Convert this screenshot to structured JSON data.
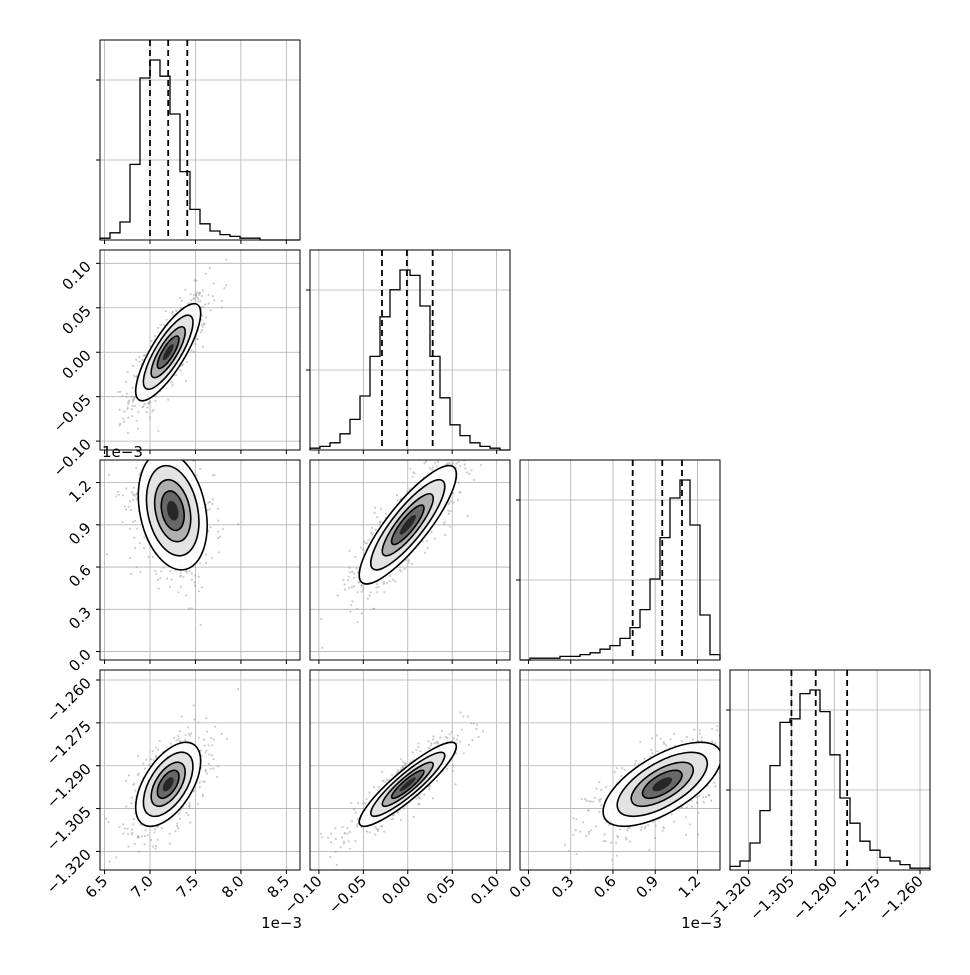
{
  "chart_data": {
    "type": "corner",
    "grid": true,
    "params": [
      {
        "range": [
          6.45,
          8.65
        ],
        "ticks": [
          "6.5",
          "7.0",
          "7.5",
          "8.0",
          "8.5"
        ],
        "tick_values": [
          6.5,
          7.0,
          7.5,
          8.0,
          8.5
        ],
        "offset_label": "1e−3",
        "hist_edges_start": 6.45,
        "hist_bin": 0.11,
        "hist_counts": [
          1,
          4,
          10,
          42,
          90,
          100,
          91,
          70,
          38,
          17,
          9,
          5,
          3,
          2,
          1,
          1,
          0,
          0,
          0,
          0
        ],
        "quantiles": [
          7.0,
          7.2,
          7.41
        ]
      },
      {
        "range": [
          -0.11,
          0.115
        ],
        "ticks": [
          "−0.10",
          "−0.05",
          "0.00",
          "0.05",
          "0.10"
        ],
        "tick_values": [
          -0.1,
          -0.05,
          0.0,
          0.05,
          0.1
        ],
        "offset_label": "",
        "hist_edges_start": -0.11,
        "hist_bin": 0.01125,
        "hist_counts": [
          1,
          2,
          4,
          9,
          17,
          30,
          52,
          74,
          89,
          100,
          97,
          80,
          52,
          29,
          14,
          8,
          4,
          2,
          1,
          0
        ],
        "quantiles": [
          -0.029,
          -0.001,
          0.028
        ]
      },
      {
        "range": [
          -0.06,
          1.36
        ],
        "ticks": [
          "0.0",
          "0.3",
          "0.6",
          "0.9",
          "1.2"
        ],
        "tick_values": [
          0.0,
          0.3,
          0.6,
          0.9,
          1.2
        ],
        "offset_label": "1e−3",
        "hist_edges_start": -0.06,
        "hist_bin": 0.071,
        "hist_counts": [
          0,
          1,
          1,
          1,
          2,
          2,
          3,
          4,
          6,
          8,
          12,
          18,
          28,
          45,
          68,
          90,
          100,
          75,
          25,
          3
        ],
        "quantiles": [
          0.74,
          0.95,
          1.09
        ]
      },
      {
        "range": [
          -1.3265,
          -1.2565
        ],
        "ticks": [
          "−1.320",
          "−1.305",
          "−1.290",
          "−1.275",
          "−1.260"
        ],
        "tick_values": [
          -1.32,
          -1.305,
          -1.29,
          -1.275,
          -1.26
        ],
        "offset_label": "",
        "hist_edges_start": -1.3265,
        "hist_bin": 0.0035,
        "hist_counts": [
          2,
          5,
          15,
          33,
          58,
          82,
          84,
          98,
          100,
          88,
          64,
          40,
          26,
          16,
          11,
          7,
          5,
          3,
          1,
          1
        ],
        "quantiles": [
          -1.305,
          -1.2965,
          -1.2855
        ]
      }
    ],
    "pairs": [
      {
        "row": 1,
        "col": 0,
        "mean": [
          7.2,
          0.0
        ],
        "sd": [
          0.17,
          0.026
        ],
        "rho": 0.8
      },
      {
        "row": 2,
        "col": 0,
        "mean": [
          7.25,
          1.0
        ],
        "sd": [
          0.18,
          0.2
        ],
        "rho": -0.25
      },
      {
        "row": 2,
        "col": 1,
        "mean": [
          0.0,
          0.9
        ],
        "sd": [
          0.026,
          0.2
        ],
        "rho": 0.85
      },
      {
        "row": 3,
        "col": 0,
        "mean": [
          7.2,
          -1.2965
        ],
        "sd": [
          0.17,
          0.007
        ],
        "rho": 0.55
      },
      {
        "row": 3,
        "col": 1,
        "mean": [
          0.0,
          -1.2965
        ],
        "sd": [
          0.026,
          0.007
        ],
        "rho": 0.9
      },
      {
        "row": 3,
        "col": 2,
        "mean": [
          0.95,
          -1.2965
        ],
        "sd": [
          0.2,
          0.007
        ],
        "rho": 0.65
      }
    ],
    "colors": {
      "hist": "#000000",
      "quantile": "#000000",
      "points": "#9a9a9a",
      "contour": "#000000",
      "grid": "#b0b0b0"
    }
  }
}
